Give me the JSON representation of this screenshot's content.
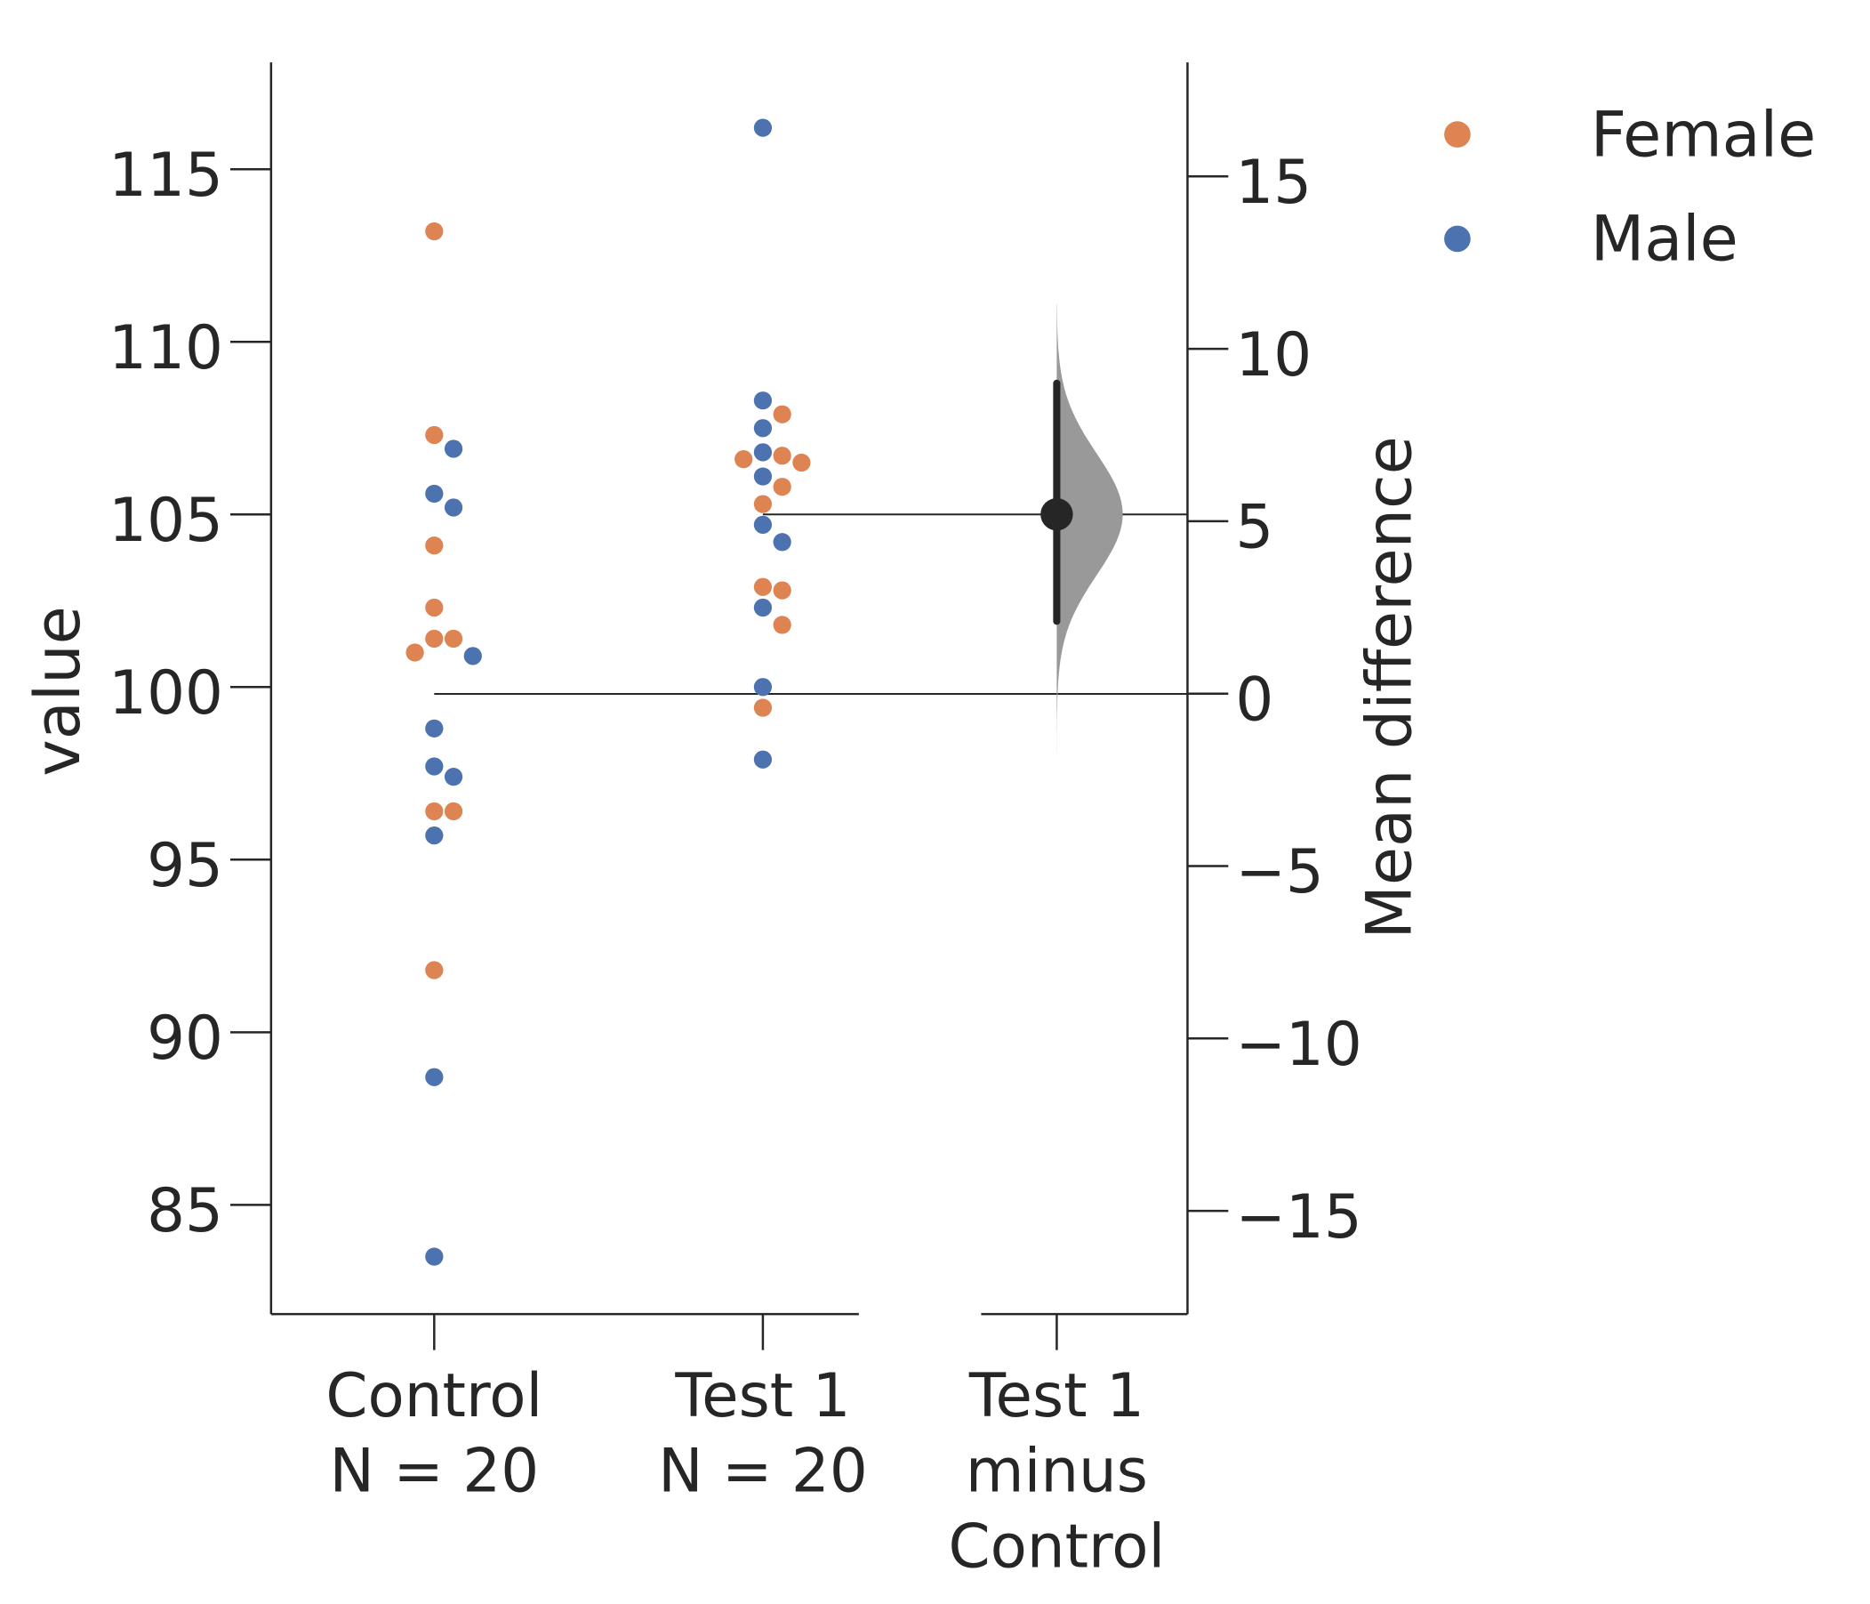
{
  "chart_data": {
    "type": "scatter",
    "subtype": "estimation-plot-swarm",
    "colors": {
      "Female": "#dd8452",
      "Male": "#4c72b0",
      "axis": "#262626",
      "distribution": "#999999"
    },
    "raw_axis": {
      "ylabel": "value",
      "ylim": [
        82.1,
        118
      ],
      "ticks": [
        85,
        90,
        95,
        100,
        105,
        110,
        115
      ],
      "tick_labels": [
        "85",
        "90",
        "95",
        "100",
        "105",
        "110",
        "115"
      ]
    },
    "delta_axis": {
      "ylabel": "Mean difference",
      "ticks": [
        -15,
        -10,
        -5,
        0,
        5,
        10,
        15
      ],
      "tick_labels": [
        "−15",
        "−10",
        "−5",
        "0",
        "5",
        "10",
        "15"
      ]
    },
    "categories": [
      {
        "name": "Control",
        "n_label": "N = 20"
      },
      {
        "name": "Test 1",
        "n_label": "N = 20"
      },
      {
        "name": "Test 1",
        "line2": "minus",
        "line3": "Control"
      }
    ],
    "legend": {
      "position": "top-right",
      "items": [
        "Female",
        "Male"
      ]
    },
    "groups": [
      {
        "name": "Control",
        "mean": 99.8,
        "points": [
          {
            "value": 113.2,
            "hue": "Female"
          },
          {
            "value": 107.3,
            "hue": "Female"
          },
          {
            "value": 106.9,
            "hue": "Male"
          },
          {
            "value": 105.6,
            "hue": "Male"
          },
          {
            "value": 105.2,
            "hue": "Male"
          },
          {
            "value": 104.1,
            "hue": "Female"
          },
          {
            "value": 102.3,
            "hue": "Female"
          },
          {
            "value": 101.4,
            "hue": "Female"
          },
          {
            "value": 101.4,
            "hue": "Female"
          },
          {
            "value": 101.0,
            "hue": "Female"
          },
          {
            "value": 100.9,
            "hue": "Male"
          },
          {
            "value": 98.8,
            "hue": "Male"
          },
          {
            "value": 97.7,
            "hue": "Male"
          },
          {
            "value": 97.4,
            "hue": "Male"
          },
          {
            "value": 96.4,
            "hue": "Female"
          },
          {
            "value": 96.4,
            "hue": "Female"
          },
          {
            "value": 95.7,
            "hue": "Male"
          },
          {
            "value": 91.8,
            "hue": "Female"
          },
          {
            "value": 88.7,
            "hue": "Male"
          },
          {
            "value": 83.5,
            "hue": "Male"
          }
        ]
      },
      {
        "name": "Test 1",
        "mean": 105.0,
        "points": [
          {
            "value": 116.2,
            "hue": "Male"
          },
          {
            "value": 108.3,
            "hue": "Male"
          },
          {
            "value": 107.9,
            "hue": "Female"
          },
          {
            "value": 107.5,
            "hue": "Male"
          },
          {
            "value": 106.8,
            "hue": "Male"
          },
          {
            "value": 106.7,
            "hue": "Female"
          },
          {
            "value": 106.6,
            "hue": "Female"
          },
          {
            "value": 106.5,
            "hue": "Female"
          },
          {
            "value": 106.1,
            "hue": "Male"
          },
          {
            "value": 105.8,
            "hue": "Female"
          },
          {
            "value": 105.3,
            "hue": "Female"
          },
          {
            "value": 104.7,
            "hue": "Male"
          },
          {
            "value": 104.2,
            "hue": "Male"
          },
          {
            "value": 102.9,
            "hue": "Female"
          },
          {
            "value": 102.8,
            "hue": "Female"
          },
          {
            "value": 102.3,
            "hue": "Male"
          },
          {
            "value": 101.8,
            "hue": "Female"
          },
          {
            "value": 100.0,
            "hue": "Male"
          },
          {
            "value": 99.4,
            "hue": "Female"
          },
          {
            "value": 97.9,
            "hue": "Male"
          }
        ]
      }
    ],
    "effect_size": {
      "comparison": "Test 1 minus Control",
      "mean_difference": 5.2,
      "ci": [
        2.1,
        9.0
      ],
      "distribution_range": [
        -1.8,
        11.3
      ]
    }
  }
}
